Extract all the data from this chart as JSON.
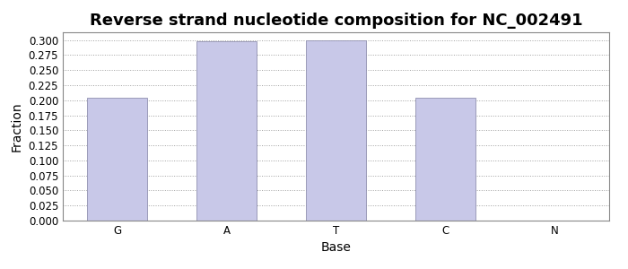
{
  "categories": [
    "G",
    "A",
    "T",
    "C",
    "N"
  ],
  "values": [
    0.2037,
    0.2977,
    0.3002,
    0.2037,
    0.0
  ],
  "bar_color": "#c8c8e8",
  "bar_edgecolor": "#9090b0",
  "title": "Reverse strand nucleotide composition for NC_002491",
  "xlabel": "Base",
  "ylabel": "Fraction",
  "ylim": [
    0.0,
    0.313
  ],
  "yticks": [
    0.0,
    0.025,
    0.05,
    0.075,
    0.1,
    0.125,
    0.15,
    0.175,
    0.2,
    0.225,
    0.25,
    0.275,
    0.3
  ],
  "title_fontsize": 13,
  "axis_fontsize": 10,
  "tick_fontsize": 8.5,
  "background_color": "#ffffff",
  "grid_color": "#888888",
  "fig_facecolor": "#ffffff",
  "bar_width": 0.55
}
